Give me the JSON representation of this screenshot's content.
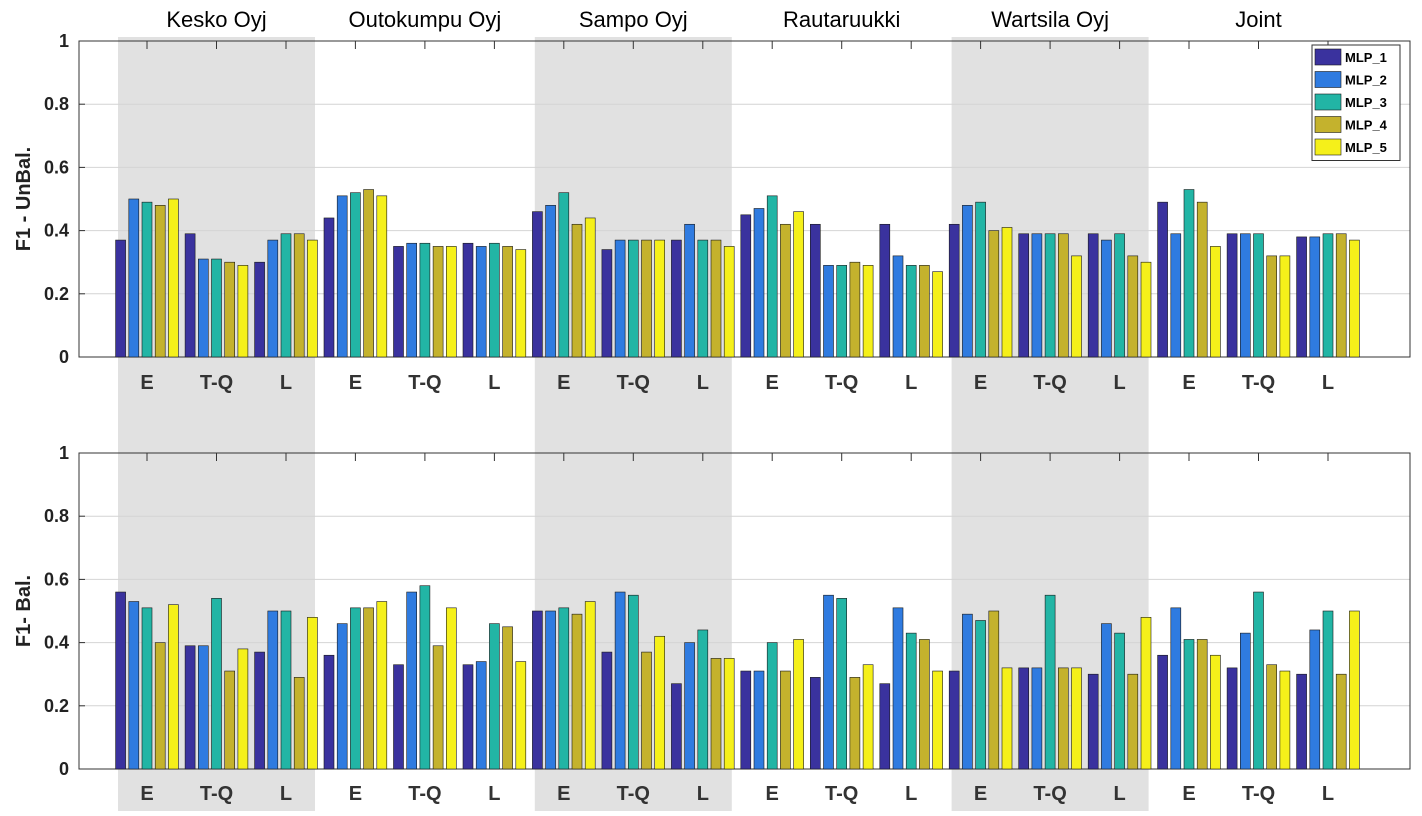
{
  "chart_data": {
    "type": "bar",
    "groups": [
      "Kesko Oyj",
      "Outokumpu Oyj",
      "Sampo Oyj",
      "Rautaruukki",
      "Wartsila Oyj",
      "Joint"
    ],
    "categories": [
      "E",
      "T-Q",
      "L"
    ],
    "series_names": [
      "MLP_1",
      "MLP_2",
      "MLP_3",
      "MLP_4",
      "MLP_5"
    ],
    "colors": [
      "#3a329e",
      "#2f7be0",
      "#22b5a5",
      "#c4b22d",
      "#f5f01a"
    ],
    "ylim": [
      0,
      1
    ],
    "yticks": [
      "0",
      "0.2",
      "0.4",
      "0.6",
      "0.8",
      "1"
    ],
    "legend_position": "top-right",
    "panels": [
      {
        "ylabel": "F1 - UnBal.",
        "values": [
          [
            0.37,
            0.5,
            0.49,
            0.48,
            0.5
          ],
          [
            0.39,
            0.31,
            0.31,
            0.3,
            0.29
          ],
          [
            0.3,
            0.37,
            0.39,
            0.39,
            0.37
          ],
          [
            0.44,
            0.51,
            0.52,
            0.53,
            0.51
          ],
          [
            0.35,
            0.36,
            0.36,
            0.35,
            0.35
          ],
          [
            0.36,
            0.35,
            0.36,
            0.35,
            0.34
          ],
          [
            0.46,
            0.48,
            0.52,
            0.42,
            0.44
          ],
          [
            0.34,
            0.37,
            0.37,
            0.37,
            0.37
          ],
          [
            0.37,
            0.42,
            0.37,
            0.37,
            0.35
          ],
          [
            0.45,
            0.47,
            0.51,
            0.42,
            0.46
          ],
          [
            0.42,
            0.29,
            0.29,
            0.3,
            0.29
          ],
          [
            0.42,
            0.32,
            0.29,
            0.29,
            0.27
          ],
          [
            0.42,
            0.48,
            0.49,
            0.4,
            0.41
          ],
          [
            0.39,
            0.39,
            0.39,
            0.39,
            0.32
          ],
          [
            0.39,
            0.37,
            0.39,
            0.32,
            0.3
          ],
          [
            0.49,
            0.39,
            0.53,
            0.49,
            0.35
          ],
          [
            0.39,
            0.39,
            0.39,
            0.32,
            0.32
          ],
          [
            0.38,
            0.38,
            0.39,
            0.39,
            0.37
          ]
        ]
      },
      {
        "ylabel": "F1- Bal.",
        "values": [
          [
            0.56,
            0.53,
            0.51,
            0.4,
            0.52
          ],
          [
            0.39,
            0.39,
            0.54,
            0.31,
            0.38
          ],
          [
            0.37,
            0.5,
            0.5,
            0.29,
            0.48
          ],
          [
            0.36,
            0.46,
            0.51,
            0.51,
            0.53
          ],
          [
            0.33,
            0.56,
            0.58,
            0.39,
            0.51
          ],
          [
            0.33,
            0.34,
            0.46,
            0.45,
            0.34
          ],
          [
            0.5,
            0.5,
            0.51,
            0.49,
            0.53
          ],
          [
            0.37,
            0.56,
            0.55,
            0.37,
            0.42
          ],
          [
            0.27,
            0.4,
            0.44,
            0.35,
            0.35
          ],
          [
            0.31,
            0.31,
            0.4,
            0.31,
            0.41
          ],
          [
            0.29,
            0.55,
            0.54,
            0.29,
            0.33
          ],
          [
            0.27,
            0.51,
            0.43,
            0.41,
            0.31
          ],
          [
            0.31,
            0.49,
            0.47,
            0.5,
            0.32
          ],
          [
            0.32,
            0.32,
            0.55,
            0.32,
            0.32
          ],
          [
            0.3,
            0.46,
            0.43,
            0.3,
            0.48
          ],
          [
            0.36,
            0.51,
            0.41,
            0.41,
            0.36
          ],
          [
            0.32,
            0.43,
            0.56,
            0.33,
            0.31
          ],
          [
            0.3,
            0.44,
            0.5,
            0.3,
            0.5
          ]
        ]
      }
    ]
  }
}
